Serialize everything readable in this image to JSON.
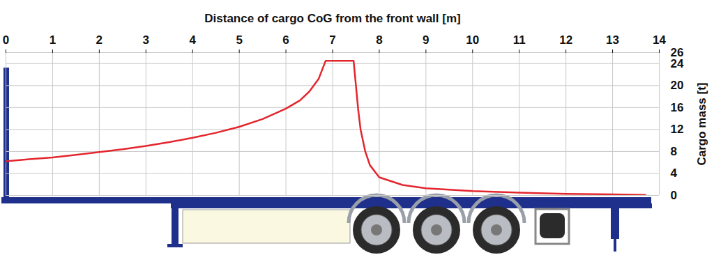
{
  "chart_data": {
    "type": "line",
    "x_label": "Distance of cargo CoG from the front wall [m]",
    "y_label": "Cargo mass [t]",
    "x": [
      0,
      0.5,
      1,
      1.5,
      2,
      2.5,
      3,
      3.5,
      4,
      4.5,
      5,
      5.5,
      6,
      6.3,
      6.5,
      6.7,
      6.85,
      7.45,
      7.5,
      7.55,
      7.6,
      7.7,
      7.8,
      8.0,
      8.5,
      9,
      10,
      11,
      12,
      13,
      13.7
    ],
    "values": [
      6.2,
      6.6,
      6.9,
      7.4,
      7.9,
      8.4,
      9.0,
      9.7,
      10.5,
      11.4,
      12.5,
      13.9,
      15.8,
      17.3,
      18.9,
      21.2,
      24.5,
      24.5,
      20.0,
      15.5,
      12.0,
      8.0,
      5.5,
      3.3,
      1.9,
      1.3,
      0.8,
      0.5,
      0.3,
      0.2,
      0.1
    ],
    "color": "#e3262d",
    "xlim": [
      0,
      14
    ],
    "xticks": [
      0,
      1,
      2,
      3,
      4,
      5,
      6,
      7,
      8,
      9,
      10,
      11,
      12,
      13,
      14
    ],
    "ylim": [
      0,
      26
    ],
    "yticks": [
      0,
      4,
      8,
      12,
      16,
      20,
      24,
      26
    ],
    "grid": true
  }
}
